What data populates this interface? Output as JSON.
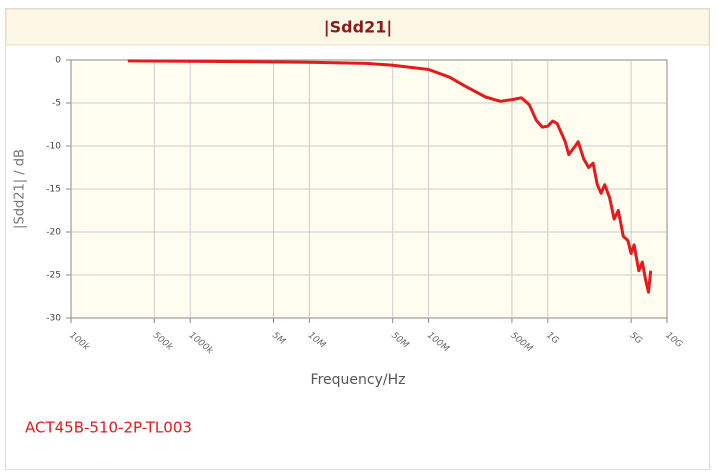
{
  "chart_data": {
    "type": "line",
    "title": "|Sdd21|",
    "xlabel": "Frequency/Hz",
    "ylabel": "|Sdd21| / dB",
    "xscale": "log",
    "grid": true,
    "xlim": [
      100000,
      10000000000
    ],
    "xticks": [
      {
        "value": 100000,
        "label": "100k"
      },
      {
        "value": 500000,
        "label": "500k"
      },
      {
        "value": 1000000,
        "label": "1000k"
      },
      {
        "value": 5000000,
        "label": "5M"
      },
      {
        "value": 10000000,
        "label": "10M"
      },
      {
        "value": 50000000,
        "label": "50M"
      },
      {
        "value": 100000000,
        "label": "100M"
      },
      {
        "value": 500000000,
        "label": "500M"
      },
      {
        "value": 1000000000,
        "label": "1G"
      },
      {
        "value": 5000000000,
        "label": "5G"
      },
      {
        "value": 10000000000,
        "label": "10G"
      }
    ],
    "ylim": [
      -30,
      0
    ],
    "yticks": [
      0,
      -5,
      -10,
      -15,
      -20,
      -25,
      -30
    ],
    "x": [
      300000,
      1000000,
      10000000,
      30000000,
      50000000,
      100000000,
      150000000,
      200000000,
      300000000,
      400000000,
      500000000,
      600000000,
      700000000,
      800000000,
      900000000,
      1000000000,
      1100000000,
      1200000000,
      1400000000,
      1500000000,
      1700000000,
      1800000000,
      2000000000,
      2200000000,
      2400000000,
      2600000000,
      2800000000,
      3000000000,
      3300000000,
      3600000000,
      3900000000,
      4300000000,
      4700000000,
      5000000000,
      5300000000,
      5800000000,
      6200000000,
      6600000000,
      7000000000,
      7300000000
    ],
    "series": [
      {
        "name": "ACT45B-510-2P-TL003",
        "color": "#e41a1c",
        "values": [
          -0.1,
          -0.15,
          -0.25,
          -0.4,
          -0.6,
          -1.1,
          -2,
          -3,
          -4.3,
          -4.8,
          -4.6,
          -4.4,
          -5.2,
          -7,
          -7.8,
          -7.7,
          -7.1,
          -7.4,
          -9.5,
          -11,
          -10,
          -9.5,
          -11.5,
          -12.5,
          -12,
          -14.5,
          -15.5,
          -14.5,
          -16,
          -18.5,
          -17.5,
          -20.5,
          -21,
          -22.5,
          -21.5,
          -24.5,
          -23.5,
          -25.5,
          -27,
          -24.5
        ]
      }
    ]
  }
}
